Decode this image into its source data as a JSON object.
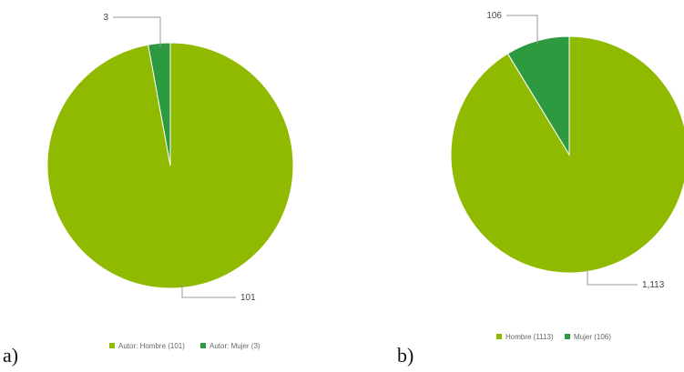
{
  "chart_data": [
    {
      "type": "pie",
      "panel_label": "a)",
      "slices": [
        {
          "label": "Autor: Hombre",
          "value": 101,
          "display": "101",
          "legend": "Autor: Hombre (101)",
          "color": "#8fba00"
        },
        {
          "label": "Autor: Mujer",
          "value": 3,
          "display": "3",
          "legend": "Autor: Mujer (3)",
          "color": "#2e9a3f"
        }
      ],
      "legend_position": "bottom"
    },
    {
      "type": "pie",
      "panel_label": "b)",
      "slices": [
        {
          "label": "Hombre",
          "value": 1113,
          "display": "1,113",
          "legend": "Hombre (1113)",
          "color": "#8fba00"
        },
        {
          "label": "Mujer",
          "value": 106,
          "display": "106",
          "legend": "Mujer (106)",
          "color": "#2e9a3f"
        }
      ],
      "legend_position": "bottom"
    }
  ]
}
